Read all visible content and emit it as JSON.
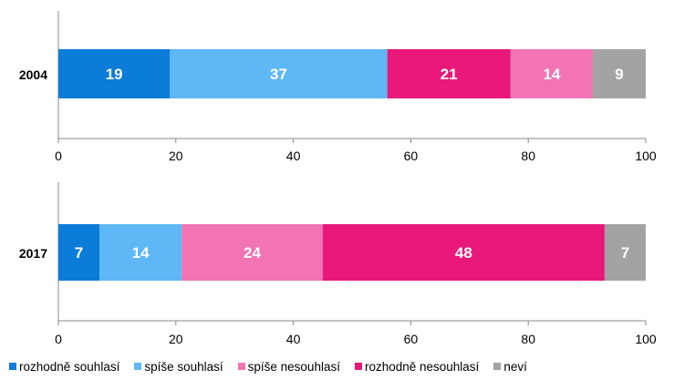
{
  "chart_data": [
    {
      "type": "bar",
      "orientation": "horizontal",
      "stacked": true,
      "categories": [
        "2004"
      ],
      "xlim": [
        0,
        100
      ],
      "xticks": [
        0,
        20,
        40,
        60,
        80,
        100
      ],
      "grid": false,
      "segments": [
        {
          "name": "rozhodně souhlasí",
          "value": 19,
          "color": "#0B7CD8"
        },
        {
          "name": "spíše souhlasí",
          "value": 37,
          "color": "#5DB8F5"
        },
        {
          "name": "rozhodně nesouhlasí",
          "value": 21,
          "color": "#E8197A"
        },
        {
          "name": "spíše nesouhlasí",
          "value": 14,
          "color": "#F274B4"
        },
        {
          "name": "neví",
          "value": 9,
          "color": "#A3A3A3"
        }
      ]
    },
    {
      "type": "bar",
      "orientation": "horizontal",
      "stacked": true,
      "categories": [
        "2017"
      ],
      "xlim": [
        0,
        100
      ],
      "xticks": [
        0,
        20,
        40,
        60,
        80,
        100
      ],
      "grid": false,
      "segments": [
        {
          "name": "rozhodně souhlasí",
          "value": 7,
          "color": "#0B7CD8"
        },
        {
          "name": "spíše souhlasí",
          "value": 14,
          "color": "#5DB8F5"
        },
        {
          "name": "spíše nesouhlasí",
          "value": 24,
          "color": "#F274B4"
        },
        {
          "name": "rozhodně nesouhlasí",
          "value": 48,
          "color": "#E8197A"
        },
        {
          "name": "neví",
          "value": 7,
          "color": "#A3A3A3"
        }
      ]
    }
  ],
  "legend": {
    "placement": "bottom",
    "items": [
      {
        "label": "rozhodně souhlasí",
        "color": "#0B7CD8"
      },
      {
        "label": "spíše souhlasí",
        "color": "#5DB8F5"
      },
      {
        "label": "spíše nesouhlasí",
        "color": "#F274B4"
      },
      {
        "label": "rozhodně nesouhlasí",
        "color": "#E8197A"
      },
      {
        "label": "neví",
        "color": "#A3A3A3"
      }
    ]
  }
}
